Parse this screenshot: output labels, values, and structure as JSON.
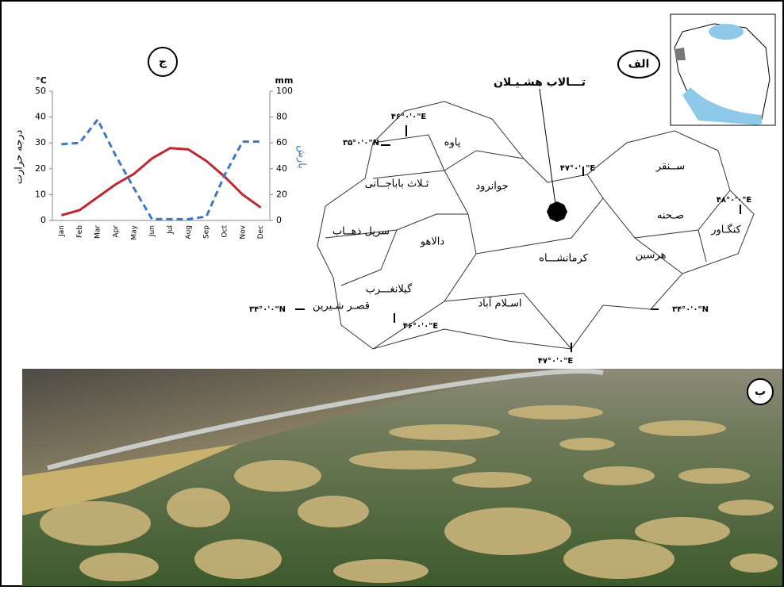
{
  "chart_data": {
    "type": "line",
    "panel_label": "ج",
    "y_unit": "°C",
    "y2_unit": "mm",
    "y_label": "درجه حرارت",
    "y2_label": "بارش",
    "categories": [
      "Jan",
      "Feb",
      "Mar",
      "Apr",
      "May",
      "Jun",
      "Jul",
      "Aug",
      "Sep",
      "Oct",
      "Nov",
      "Dec"
    ],
    "series": [
      {
        "color": "#c0272d",
        "dash": false,
        "values": [
          2,
          4,
          9,
          14,
          18,
          24,
          28,
          27.5,
          23,
          17,
          10,
          5
        ]
      },
      {
        "color": "#3a78c9",
        "dash": true,
        "axis": "y2",
        "values": [
          59,
          60,
          78,
          50,
          25,
          1,
          1,
          1,
          3,
          35,
          61,
          61
        ]
      }
    ],
    "ylim": [
      0,
      50
    ],
    "yticks": [
      0,
      10,
      20,
      30,
      40,
      50
    ],
    "y2lim": [
      0,
      100
    ],
    "y2ticks": [
      0,
      20,
      40,
      60,
      80,
      100
    ]
  },
  "map": {
    "panel_label": "الف",
    "wetland": "تـــالاب هشـیـلان",
    "labels": [
      "پاوه",
      "جوانرود",
      "ثـلاث باباجــانی",
      "سرپل ذهــاب",
      "دالاهو",
      "گیلانغـــرب",
      "قصـر شـیرین",
      "اسـلام آباد",
      "کرمانشـــاه",
      "ســنقر",
      "صـحنه",
      "کنگـاور",
      "هرسین"
    ],
    "coords": [
      "۴۶°۰'۰\"E",
      "۳۵°۰'۰\"N",
      "۴۷°۰'۰\"E",
      "۴۸°۰'۰\"E",
      "۳۴°۰'۰\"N",
      "۳۴°۰'۰\"N",
      "۴۶°۰'۰\"E",
      "۴۷°۰'۰\"E"
    ]
  },
  "photo": {
    "panel_label": "ب"
  }
}
